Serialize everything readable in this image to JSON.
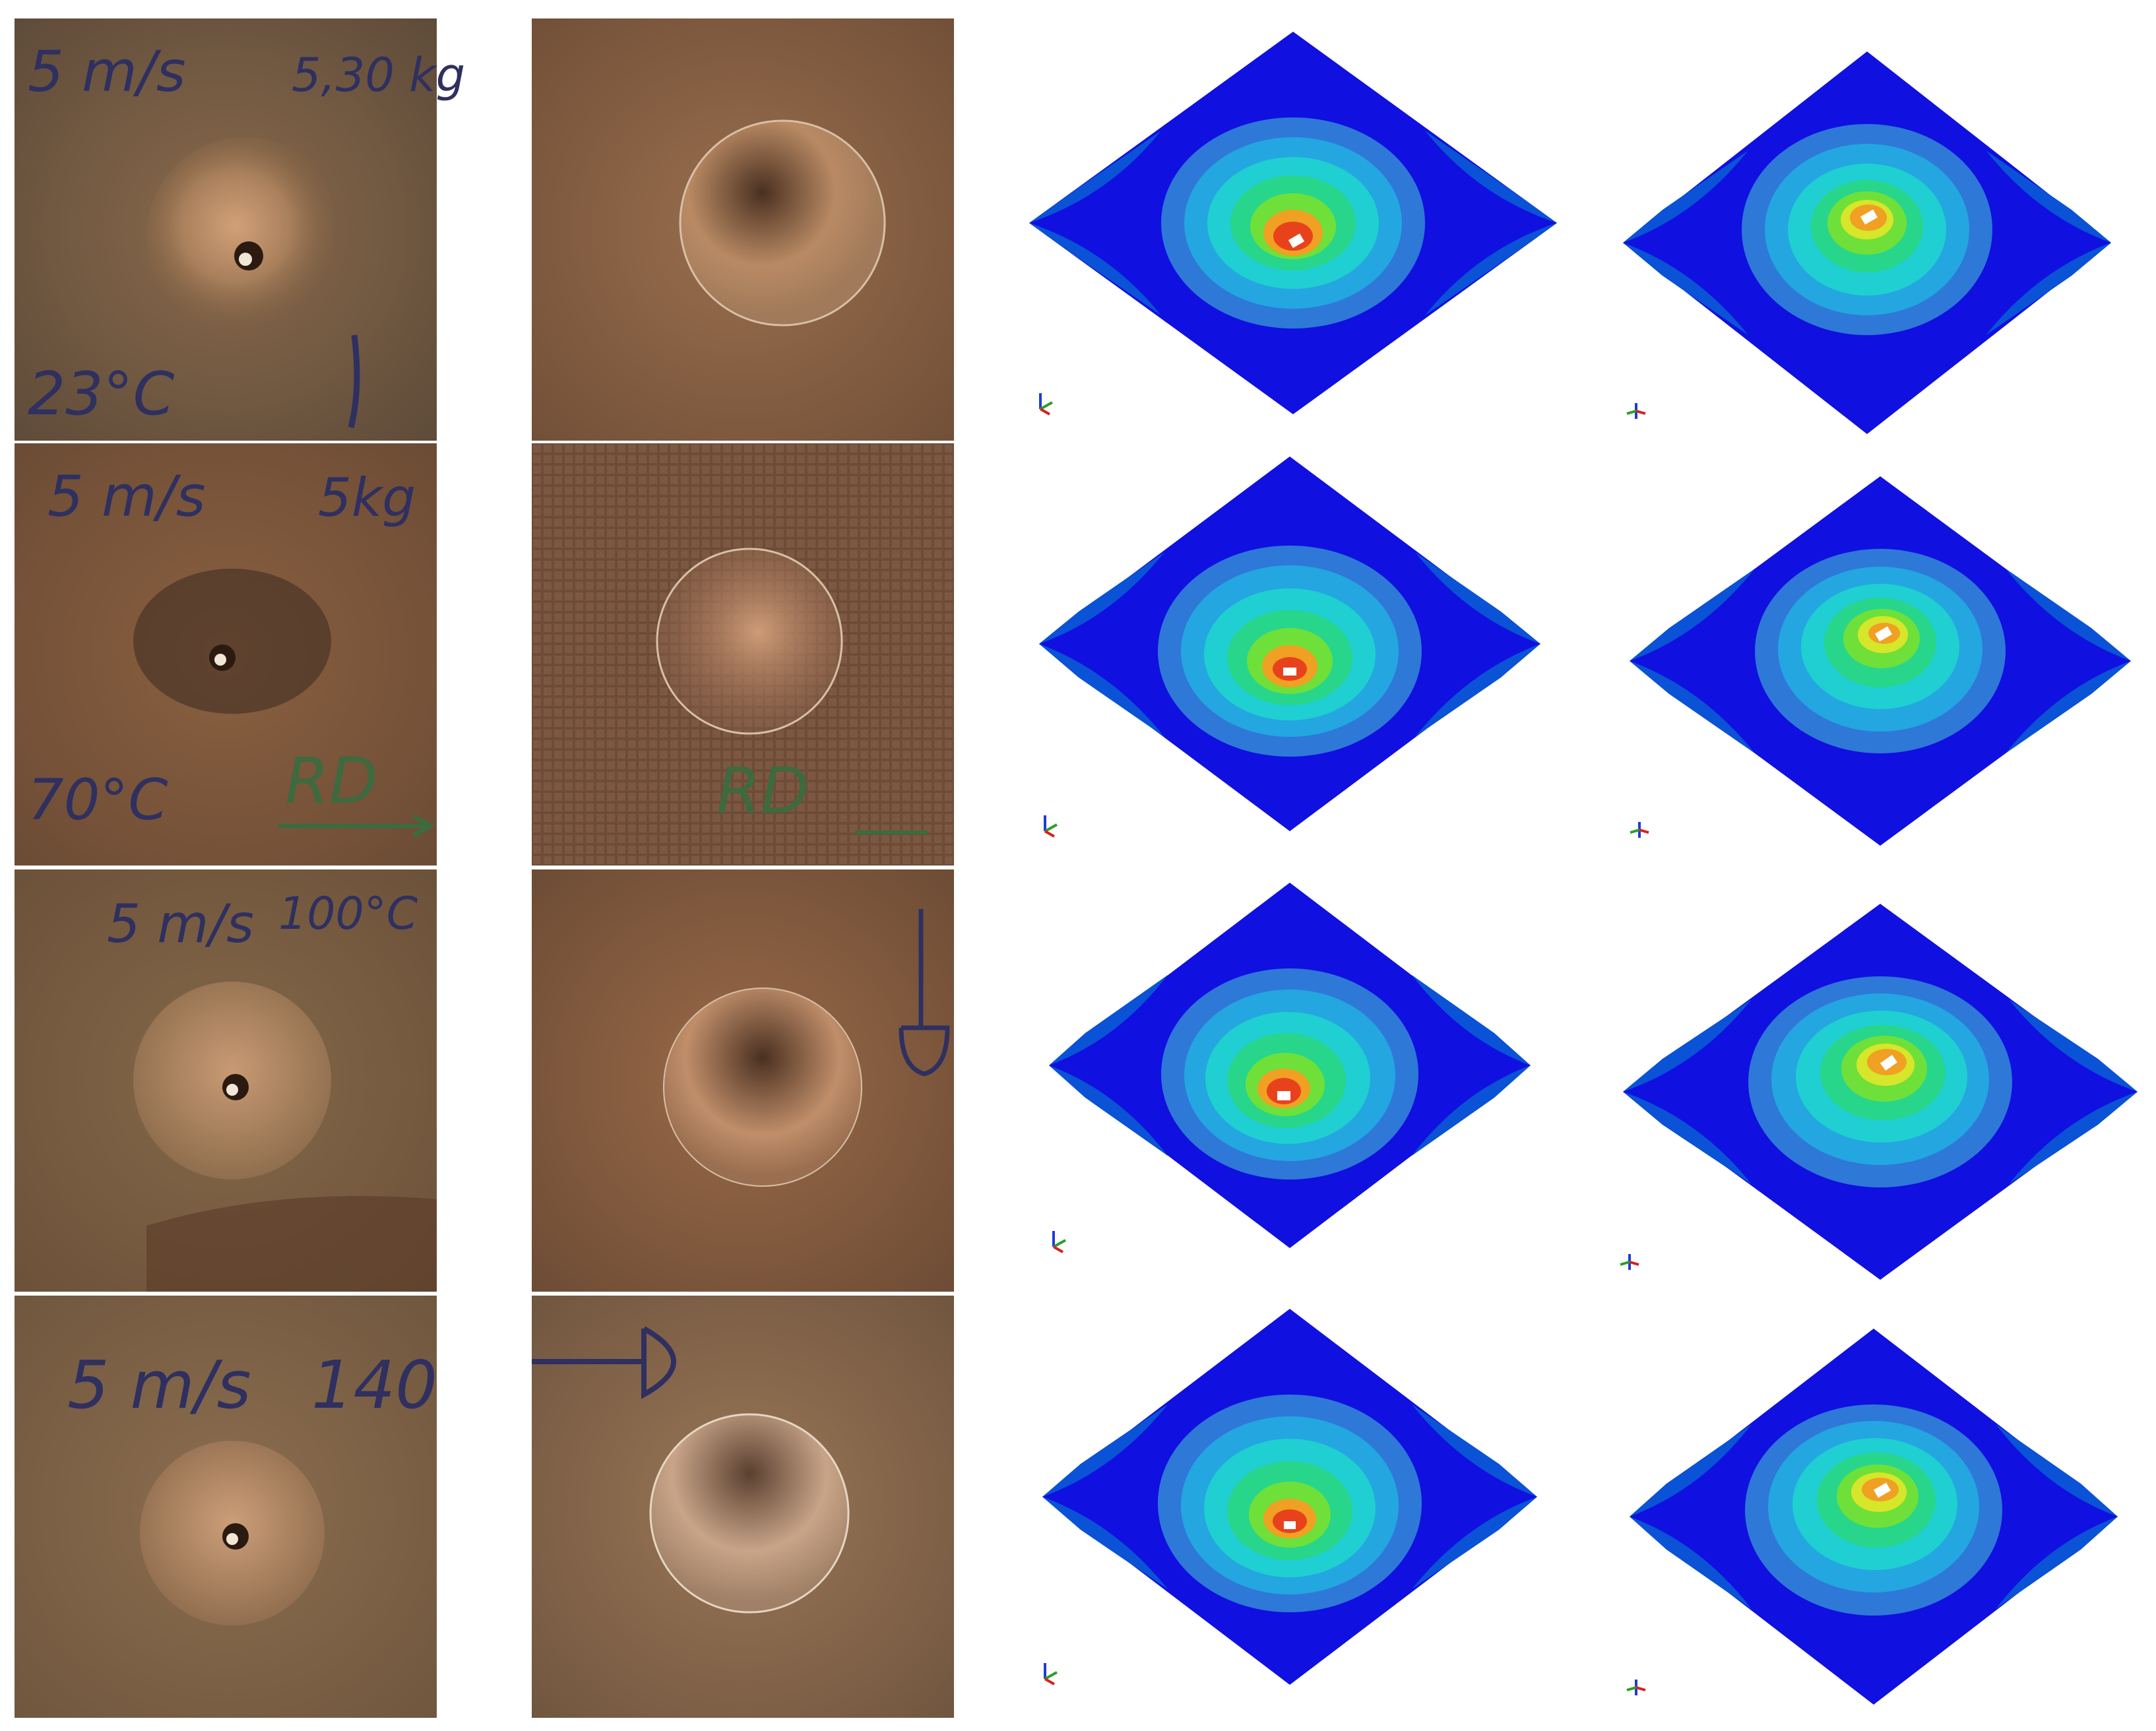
{
  "rows": [
    {
      "photo_front": {
        "labels": [
          "5 m/s",
          "5,30 kg",
          "23°C"
        ]
      },
      "photo_back": {
        "labels": []
      }
    },
    {
      "photo_front": {
        "labels": [
          "5 m/s",
          "5kg",
          "70°C",
          "RD"
        ]
      },
      "photo_back": {
        "labels": [
          "RD"
        ]
      }
    },
    {
      "photo_front": {
        "labels": [
          "5 m/s",
          "100°C"
        ]
      },
      "photo_back": {
        "labels": []
      }
    },
    {
      "photo_front": {
        "labels": [
          "5 m/s",
          "140"
        ]
      },
      "photo_back": {
        "labels": []
      }
    }
  ],
  "colors": {
    "plate_blue": "#1010e0",
    "plate_edge": "#0a52d6",
    "band1": "#2e78d8",
    "band2": "#24a6e0",
    "band3": "#1fcfd2",
    "band4": "#27d68a",
    "band5": "#6fe03a",
    "band6": "#d6e62a",
    "band7": "#f0a022",
    "band8": "#e8421c",
    "photo_base": "#7a5a3c",
    "ink": "#2f3060",
    "green_ink": "#3d6a3e"
  },
  "icons": [
    "axis-triad-icon"
  ]
}
